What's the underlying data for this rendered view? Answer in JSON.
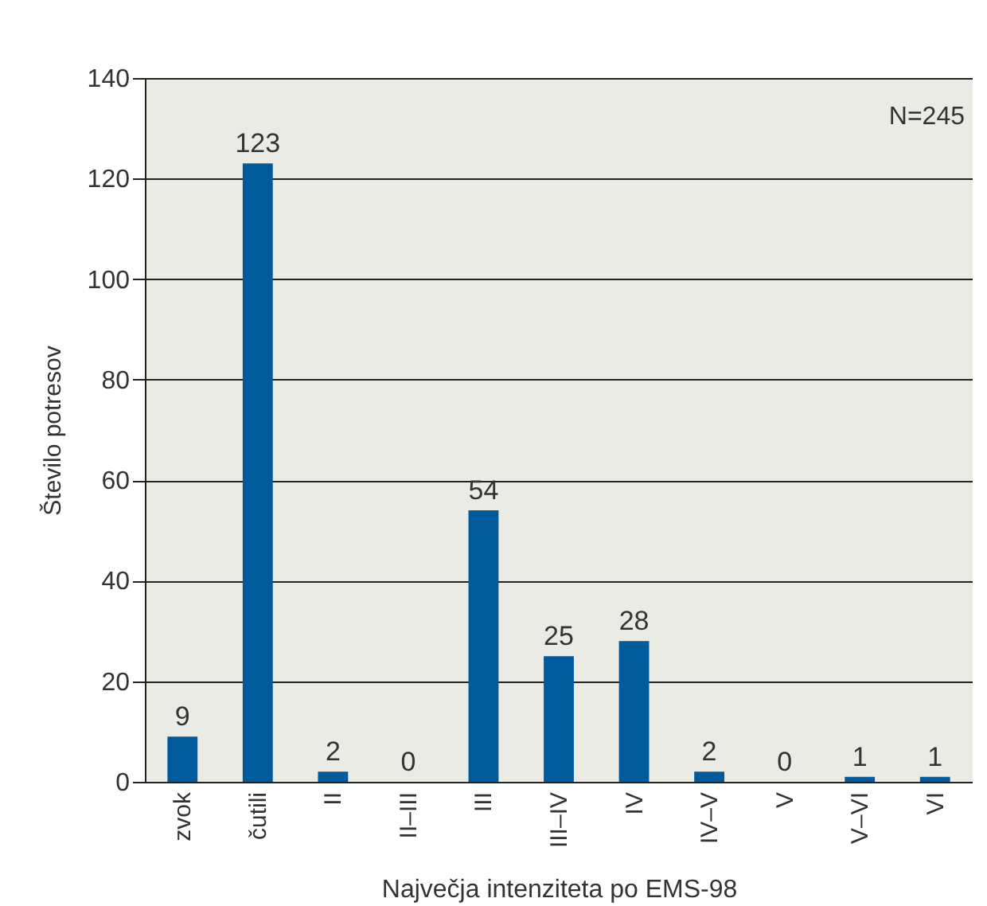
{
  "chart_data": {
    "type": "bar",
    "xlabel": "Največja intenziteta po EMS-98",
    "ylabel": "Število potresov",
    "categories": [
      "zvok",
      "čutili",
      "II",
      "II–III",
      "III",
      "III–IV",
      "IV",
      "IV–V",
      "V",
      "V–VI",
      "VI"
    ],
    "values": [
      9,
      123,
      2,
      0,
      54,
      25,
      28,
      2,
      0,
      1,
      1
    ],
    "color": "#005a9c",
    "ylim": [
      0,
      140
    ],
    "yticks": [
      0,
      20,
      40,
      60,
      80,
      100,
      120,
      140
    ],
    "grid": "y",
    "data_labels": true,
    "annotations": [
      "N=245"
    ]
  }
}
